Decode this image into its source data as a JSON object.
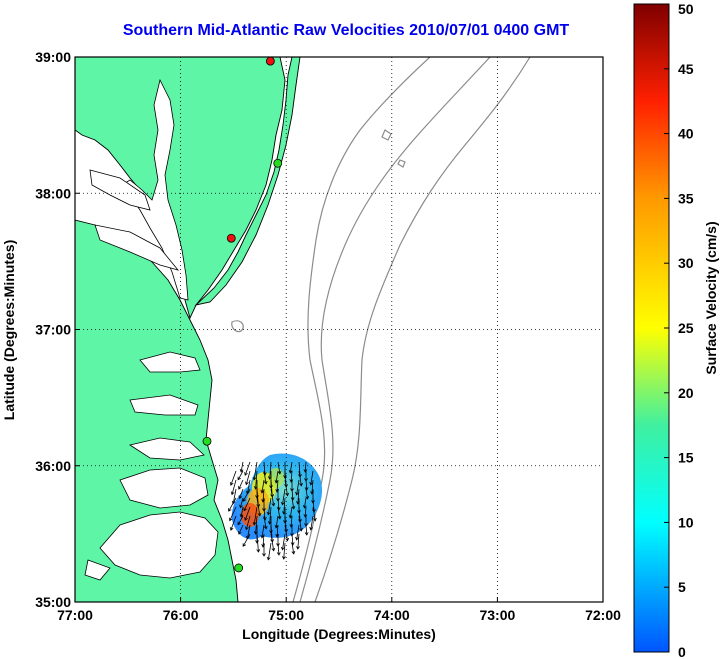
{
  "title": "Southern Mid-Atlantic Raw Velocities 2010/07/01 0400 GMT",
  "colors": {
    "land": "#5ef5a6",
    "coastline": "#000000",
    "bathymetry": "#8c8c8c",
    "grid": "#000000",
    "site_green": "#22dd22",
    "site_red": "#ee1111"
  },
  "chart_data": {
    "type": "map",
    "xlabel": "Longitude (Degrees:Minutes)",
    "ylabel": "Latitude (Degrees:Minutes)",
    "xlim": [
      -77,
      -72
    ],
    "ylim": [
      35,
      39
    ],
    "x_ticks": [
      {
        "value": -77,
        "label": "77:00"
      },
      {
        "value": -76,
        "label": "76:00"
      },
      {
        "value": -75,
        "label": "75:00"
      },
      {
        "value": -74,
        "label": "74:00"
      },
      {
        "value": -73,
        "label": "73:00"
      },
      {
        "value": -72,
        "label": "72:00"
      }
    ],
    "y_ticks": [
      {
        "value": 35,
        "label": "35:00"
      },
      {
        "value": 36,
        "label": "36:00"
      },
      {
        "value": 37,
        "label": "37:00"
      },
      {
        "value": 38,
        "label": "38:00"
      },
      {
        "value": 39,
        "label": "39:00"
      }
    ],
    "grid": "dotted",
    "colorbar": {
      "label": "Surface Velocity (cm/s)",
      "min": 0,
      "max": 50,
      "ticks": [
        0,
        5,
        10,
        15,
        20,
        25,
        30,
        35,
        40,
        45,
        50
      ],
      "colormap": "jet",
      "placement": "right"
    },
    "radar_sites": [
      {
        "lon": -75.15,
        "lat": 38.97,
        "color": "red"
      },
      {
        "lon": -75.08,
        "lat": 38.22,
        "color": "green"
      },
      {
        "lon": -75.52,
        "lat": 37.67,
        "color": "red"
      },
      {
        "lon": -75.75,
        "lat": 36.18,
        "color": "green"
      },
      {
        "lon": -75.45,
        "lat": 35.25,
        "color": "green"
      }
    ],
    "velocity_field": {
      "center_lon": -75.1,
      "center_lat": 35.75,
      "extent": "approx. 74.7W–75.55W, 35.45N–36.1N",
      "max_speed_cm_s": 35
    }
  }
}
